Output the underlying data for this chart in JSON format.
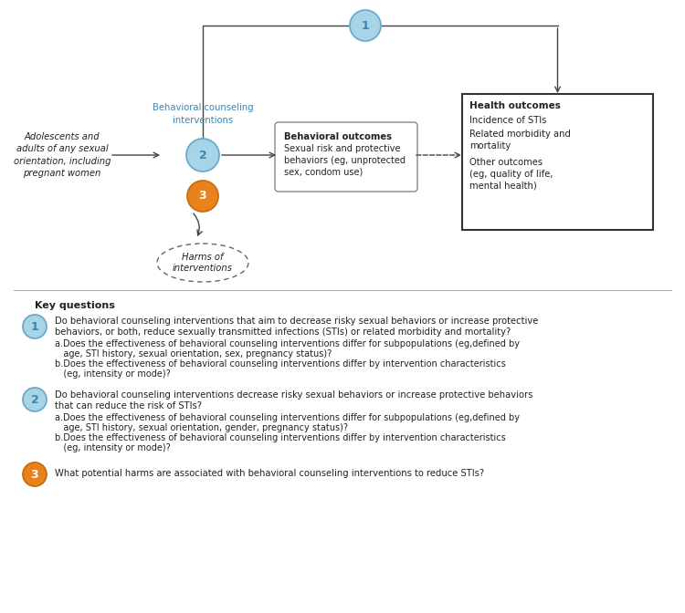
{
  "fig_width": 7.5,
  "fig_height": 6.72,
  "bg_color": "#ffffff",
  "diagram": {
    "population_text": "Adolescents and\nadults of any sexual\norientation, including\npregnant women",
    "bci_label": "Behavioral counseling\ninterventions",
    "behavioral_outcomes_title": "Behavioral outcomes",
    "behavioral_outcomes_body": "Sexual risk and protective\nbehaviors (eg, unprotected\nsex, condom use)",
    "health_outcomes_title": "Health outcomes",
    "health_outcomes_line1": "Incidence of STIs",
    "health_outcomes_line2": "Related morbidity and\nmortality",
    "health_outcomes_line3": "Other outcomes\n(eg, quality of life,\nmental health)",
    "harms_text": "Harms of\ninterventions",
    "circle1_color": "#a8d4e8",
    "circle1_border": "#6aabcc",
    "circle2_color": "#a8d4e8",
    "circle2_border": "#6aabcc",
    "circle3_color": "#e8821a",
    "circle3_border": "#c96d10",
    "text_color_blue": "#3a85b5",
    "text_color_dark": "#222222",
    "box_border": "#555555",
    "arrow_color": "#444444"
  },
  "key_questions": {
    "header": "Key questions",
    "q1_main_line1": "Do behavioral counseling interventions that aim to decrease risky sexual behaviors or increase protective",
    "q1_main_line2": "behaviors, or both, reduce sexually transmitted infections (STIs) or related morbidity and mortality?",
    "q1_a_line1": "a.Does the effectiveness of behavioral counseling interventions differ for subpopulations (eg,defined by",
    "q1_a_line2": "   age, STI history, sexual orientation, sex, pregnancy status)?",
    "q1_b_line1": "b.Does the effectiveness of behavioral counseling interventions differ by intervention characteristics",
    "q1_b_line2": "   (eg, intensity or mode)?",
    "q2_main_line1": "Do behavioral counseling interventions decrease risky sexual behaviors or increase protective behaviors",
    "q2_main_line2": "that can reduce the risk of STIs?",
    "q2_a_line1": "a.Does the effectiveness of behavioral counseling interventions differ for subpopulations (eg,defined by",
    "q2_a_line2": "   age, STI history, sexual orientation, gender, pregnancy status)?",
    "q2_b_line1": "b.Does the effectiveness of behavioral counseling interventions differ by intervention characteristics",
    "q2_b_line2": "   (eg, intensity or mode)?",
    "q3_main": "What potential harms are associated with behavioral counseling interventions to reduce STIs?",
    "circle1_color": "#a8d4e8",
    "circle1_border": "#6aabcc",
    "circle2_color": "#a8d4e8",
    "circle2_border": "#6aabcc",
    "circle3_color": "#e8821a",
    "circle3_border": "#c96d10"
  }
}
